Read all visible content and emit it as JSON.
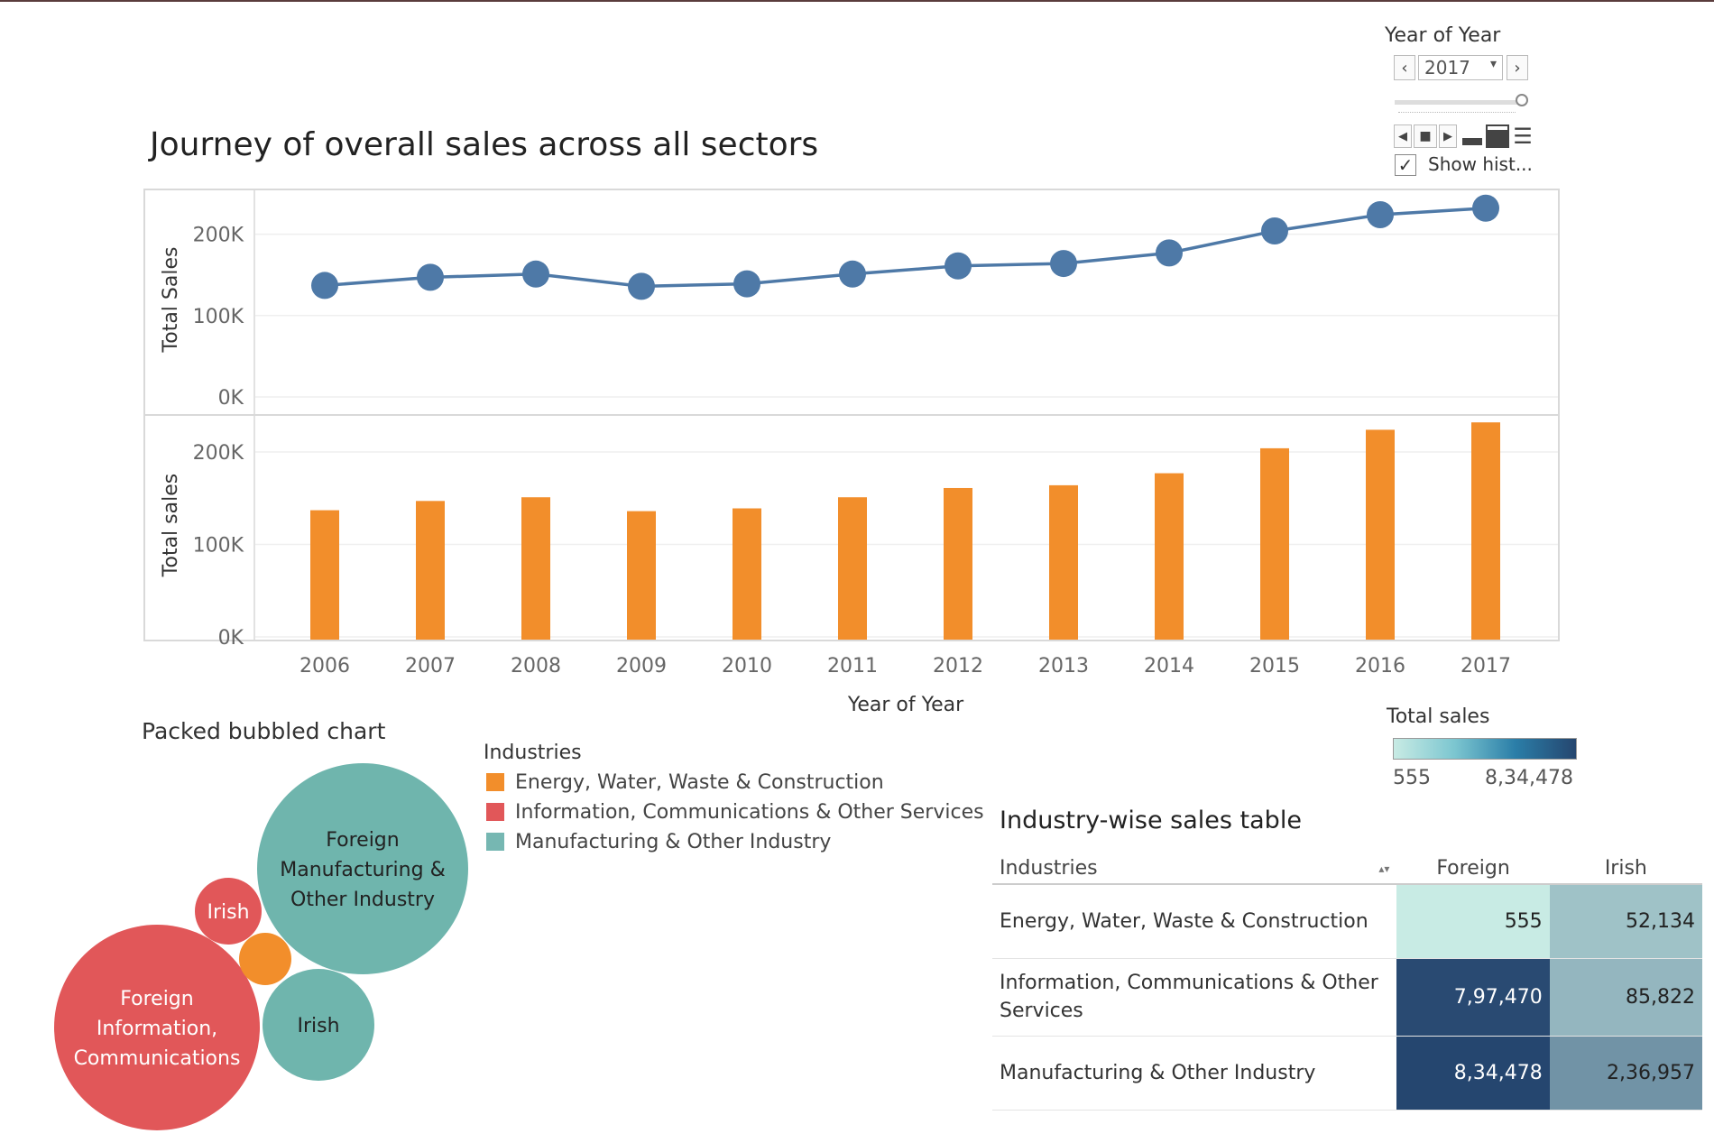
{
  "dashboard_title": "Journey of overall sales across all sectors",
  "year_filter": {
    "title": "Year of Year",
    "selected": "2017",
    "prev_icon": "chevron-left-icon",
    "next_icon": "chevron-right-icon",
    "show_history_label": "Show hist...",
    "show_history_checked": true,
    "slider_position": 1.0
  },
  "chart_data": [
    {
      "type": "line",
      "x": [
        "2006",
        "2007",
        "2008",
        "2009",
        "2010",
        "2011",
        "2012",
        "2013",
        "2014",
        "2015",
        "2016",
        "2017"
      ],
      "series": [
        {
          "values": [
            137000,
            147000,
            151000,
            136000,
            139000,
            151000,
            161000,
            164000,
            177000,
            204000,
            224000,
            232000
          ]
        }
      ],
      "ylabel": "Total Sales",
      "yticks": [
        "200K",
        "100K",
        "0K"
      ],
      "ylim": [
        0,
        255000
      ],
      "color": "#4e79a7",
      "grid": true
    },
    {
      "type": "bar",
      "categories": [
        "2006",
        "2007",
        "2008",
        "2009",
        "2010",
        "2011",
        "2012",
        "2013",
        "2014",
        "2015",
        "2016",
        "2017"
      ],
      "values": [
        137000,
        147000,
        151000,
        136000,
        139000,
        151000,
        161000,
        164000,
        177000,
        204000,
        224000,
        232000
      ],
      "ylabel": "Total sales",
      "xlabel": "Year of Year",
      "yticks": [
        "200K",
        "100K",
        "0K"
      ],
      "ylim": [
        0,
        240000
      ],
      "color": "#f28e2b",
      "grid": true
    },
    {
      "type": "bubble",
      "title": "Packed bubbled chart",
      "legend_title": "Industries",
      "legend": [
        {
          "label": "Energy, Water, Waste & Construction",
          "color": "#f28e2b"
        },
        {
          "label": "Information, Communications & Other Services",
          "color": "#e15759"
        },
        {
          "label": "Manufacturing & Other Industry",
          "color": "#76b7b2"
        }
      ],
      "bubbles": [
        {
          "label": "Foreign Manufacturing & Other Industry",
          "lines": [
            "Foreign",
            "Manufacturing &",
            "Other Industry"
          ],
          "industry": "Manufacturing & Other Industry",
          "value": 834478,
          "color": "#6fb5ad"
        },
        {
          "label": "Foreign Information, Communications",
          "lines": [
            "Foreign",
            "Information,",
            "Communications"
          ],
          "industry": "Information, Communications & Other Services",
          "value": 797470,
          "color": "#e15759"
        },
        {
          "label": "Irish",
          "lines": [
            "Irish"
          ],
          "industry": "Manufacturing & Other Industry",
          "value": 236957,
          "color": "#6fb5ad"
        },
        {
          "label": "Irish",
          "lines": [
            "Irish"
          ],
          "industry": "Information, Communications & Other Services",
          "value": 85822,
          "color": "#e15759"
        },
        {
          "label": "",
          "lines": [],
          "industry": "Energy, Water, Waste & Construction",
          "value": 52134,
          "color": "#f28e2b"
        }
      ]
    },
    {
      "type": "table",
      "title": "Industry-wise sales table",
      "columns": [
        "Industries",
        "Foreign",
        "Irish"
      ],
      "rows": [
        {
          "industry": "Energy, Water, Waste & Construction",
          "industry_lines": [
            "Energy, Water, Waste & Construction"
          ],
          "foreign": "555",
          "irish": "52,134",
          "foreign_value": 555,
          "irish_value": 52134
        },
        {
          "industry": "Information, Communications & Other Services",
          "industry_lines": [
            "Information, Communications & Other",
            "Services"
          ],
          "foreign": "7,97,470",
          "irish": "85,822",
          "foreign_value": 797470,
          "irish_value": 85822
        },
        {
          "industry": "Manufacturing & Other Industry",
          "industry_lines": [
            "Manufacturing & Other Industry"
          ],
          "foreign": "8,34,478",
          "irish": "2,36,957",
          "foreign_value": 834478,
          "irish_value": 236957
        }
      ],
      "color_legend": {
        "title": "Total sales",
        "min_label": "555",
        "max_label": "8,34,478",
        "min": 555,
        "max": 834478,
        "colors": [
          "#c8ebe4",
          "#25466f"
        ]
      }
    }
  ]
}
